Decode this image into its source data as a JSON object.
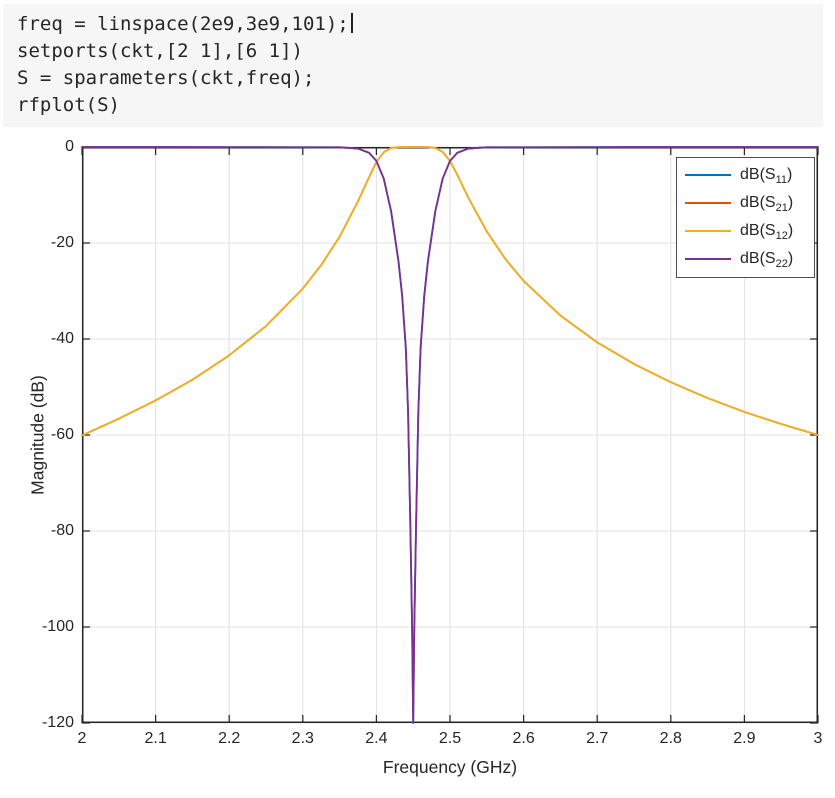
{
  "code_block": {
    "lines": [
      "freq = linspace(2e9,3e9,101);",
      "setports(ckt,[2 1],[6 1])",
      "S = sparameters(ckt,freq);",
      "rfplot(S)"
    ],
    "cursor_line": 0
  },
  "chart_data": {
    "type": "line",
    "title": "",
    "xlabel": "Frequency (GHz)",
    "ylabel": "Magnitude (dB)",
    "xlim": [
      2,
      3
    ],
    "ylim": [
      -120,
      0
    ],
    "xticks": [
      2,
      2.1,
      2.2,
      2.3,
      2.4,
      2.5,
      2.6,
      2.7,
      2.8,
      2.9,
      3
    ],
    "xtick_labels": [
      "2",
      "2.1",
      "2.2",
      "2.3",
      "2.4",
      "2.5",
      "2.6",
      "2.7",
      "2.8",
      "2.9",
      "3"
    ],
    "yticks": [
      0,
      -20,
      -40,
      -60,
      -80,
      -100,
      -120
    ],
    "ytick_labels": [
      "0",
      "-20",
      "-40",
      "-60",
      "-80",
      "-100",
      "-120"
    ],
    "grid": true,
    "legend_position": "northeast",
    "axis_color": "#262626",
    "grid_color": "#e2e2e2",
    "series": [
      {
        "id": "S11",
        "label_prefix": "dB(S",
        "label_sub": "11",
        "label_suffix": ")",
        "color": "#0072BD",
        "points": [
          [
            2.0,
            -0.01
          ],
          [
            2.1,
            -0.01
          ],
          [
            2.2,
            -0.02
          ],
          [
            2.3,
            -0.05
          ],
          [
            2.35,
            -0.06
          ],
          [
            2.375,
            -0.33
          ],
          [
            2.39,
            -1.2
          ],
          [
            2.4,
            -2.9
          ],
          [
            2.41,
            -6.6
          ],
          [
            2.42,
            -13.4
          ],
          [
            2.43,
            -23.8
          ],
          [
            2.435,
            -31
          ],
          [
            2.44,
            -42
          ],
          [
            2.443,
            -55
          ],
          [
            2.446,
            -78
          ],
          [
            2.4485,
            -100
          ],
          [
            2.45,
            -120
          ],
          [
            2.4515,
            -100
          ],
          [
            2.454,
            -78
          ],
          [
            2.457,
            -55
          ],
          [
            2.46,
            -42
          ],
          [
            2.465,
            -31
          ],
          [
            2.47,
            -23.8
          ],
          [
            2.48,
            -13.4
          ],
          [
            2.49,
            -6.6
          ],
          [
            2.5,
            -2.9
          ],
          [
            2.51,
            -1.2
          ],
          [
            2.525,
            -0.33
          ],
          [
            2.55,
            -0.06
          ],
          [
            2.6,
            -0.05
          ],
          [
            2.7,
            -0.02
          ],
          [
            2.8,
            -0.01
          ],
          [
            2.9,
            -0.01
          ],
          [
            3.0,
            -0.01
          ]
        ]
      },
      {
        "id": "S21",
        "label_prefix": "dB(S",
        "label_sub": "21",
        "label_suffix": ")",
        "color": "#D95319",
        "points": [
          [
            2.0,
            -60.1
          ],
          [
            2.05,
            -56.6
          ],
          [
            2.1,
            -52.8
          ],
          [
            2.15,
            -48.5
          ],
          [
            2.2,
            -43.4
          ],
          [
            2.25,
            -37.3
          ],
          [
            2.3,
            -29.5
          ],
          [
            2.325,
            -24.6
          ],
          [
            2.35,
            -18.7
          ],
          [
            2.375,
            -11.3
          ],
          [
            2.39,
            -6.3
          ],
          [
            2.4,
            -3.1
          ],
          [
            2.41,
            -1.1
          ],
          [
            2.42,
            -0.2
          ],
          [
            2.43,
            -0.02
          ],
          [
            2.45,
            0
          ],
          [
            2.47,
            -0.02
          ],
          [
            2.48,
            -0.2
          ],
          [
            2.49,
            -1.0
          ],
          [
            2.5,
            -2.9
          ],
          [
            2.51,
            -5.8
          ],
          [
            2.525,
            -10.6
          ],
          [
            2.55,
            -17.6
          ],
          [
            2.575,
            -23.3
          ],
          [
            2.6,
            -27.9
          ],
          [
            2.65,
            -35.1
          ],
          [
            2.7,
            -40.7
          ],
          [
            2.75,
            -45.2
          ],
          [
            2.8,
            -49.0
          ],
          [
            2.85,
            -52.3
          ],
          [
            2.9,
            -55.2
          ],
          [
            2.95,
            -57.7
          ],
          [
            3.0,
            -60.0
          ]
        ]
      },
      {
        "id": "S12",
        "label_prefix": "dB(S",
        "label_sub": "12",
        "label_suffix": ")",
        "color": "#EDB120",
        "points": [
          [
            2.0,
            -60.1
          ],
          [
            2.05,
            -56.6
          ],
          [
            2.1,
            -52.8
          ],
          [
            2.15,
            -48.5
          ],
          [
            2.2,
            -43.4
          ],
          [
            2.25,
            -37.3
          ],
          [
            2.3,
            -29.5
          ],
          [
            2.325,
            -24.6
          ],
          [
            2.35,
            -18.7
          ],
          [
            2.375,
            -11.3
          ],
          [
            2.39,
            -6.3
          ],
          [
            2.4,
            -3.1
          ],
          [
            2.41,
            -1.1
          ],
          [
            2.42,
            -0.2
          ],
          [
            2.43,
            -0.02
          ],
          [
            2.45,
            0
          ],
          [
            2.47,
            -0.02
          ],
          [
            2.48,
            -0.2
          ],
          [
            2.49,
            -1.0
          ],
          [
            2.5,
            -2.9
          ],
          [
            2.51,
            -5.8
          ],
          [
            2.525,
            -10.6
          ],
          [
            2.55,
            -17.6
          ],
          [
            2.575,
            -23.3
          ],
          [
            2.6,
            -27.9
          ],
          [
            2.65,
            -35.1
          ],
          [
            2.7,
            -40.7
          ],
          [
            2.75,
            -45.2
          ],
          [
            2.8,
            -49.0
          ],
          [
            2.85,
            -52.3
          ],
          [
            2.9,
            -55.2
          ],
          [
            2.95,
            -57.7
          ],
          [
            3.0,
            -60.0
          ]
        ]
      },
      {
        "id": "S22",
        "label_prefix": "dB(S",
        "label_sub": "22",
        "label_suffix": ")",
        "color": "#7E2F8E",
        "points": [
          [
            2.0,
            -0.01
          ],
          [
            2.1,
            -0.01
          ],
          [
            2.2,
            -0.02
          ],
          [
            2.3,
            -0.05
          ],
          [
            2.35,
            -0.06
          ],
          [
            2.375,
            -0.33
          ],
          [
            2.39,
            -1.2
          ],
          [
            2.4,
            -2.9
          ],
          [
            2.41,
            -6.6
          ],
          [
            2.42,
            -13.4
          ],
          [
            2.43,
            -23.8
          ],
          [
            2.435,
            -31
          ],
          [
            2.44,
            -42
          ],
          [
            2.443,
            -55
          ],
          [
            2.446,
            -78
          ],
          [
            2.4485,
            -100
          ],
          [
            2.45,
            -120
          ],
          [
            2.4515,
            -100
          ],
          [
            2.454,
            -78
          ],
          [
            2.457,
            -55
          ],
          [
            2.46,
            -42
          ],
          [
            2.465,
            -31
          ],
          [
            2.47,
            -23.8
          ],
          [
            2.48,
            -13.4
          ],
          [
            2.49,
            -6.6
          ],
          [
            2.5,
            -2.9
          ],
          [
            2.51,
            -1.2
          ],
          [
            2.525,
            -0.33
          ],
          [
            2.55,
            -0.06
          ],
          [
            2.6,
            -0.05
          ],
          [
            2.7,
            -0.02
          ],
          [
            2.8,
            -0.01
          ],
          [
            2.9,
            -0.01
          ],
          [
            3.0,
            -0.01
          ]
        ]
      }
    ]
  }
}
